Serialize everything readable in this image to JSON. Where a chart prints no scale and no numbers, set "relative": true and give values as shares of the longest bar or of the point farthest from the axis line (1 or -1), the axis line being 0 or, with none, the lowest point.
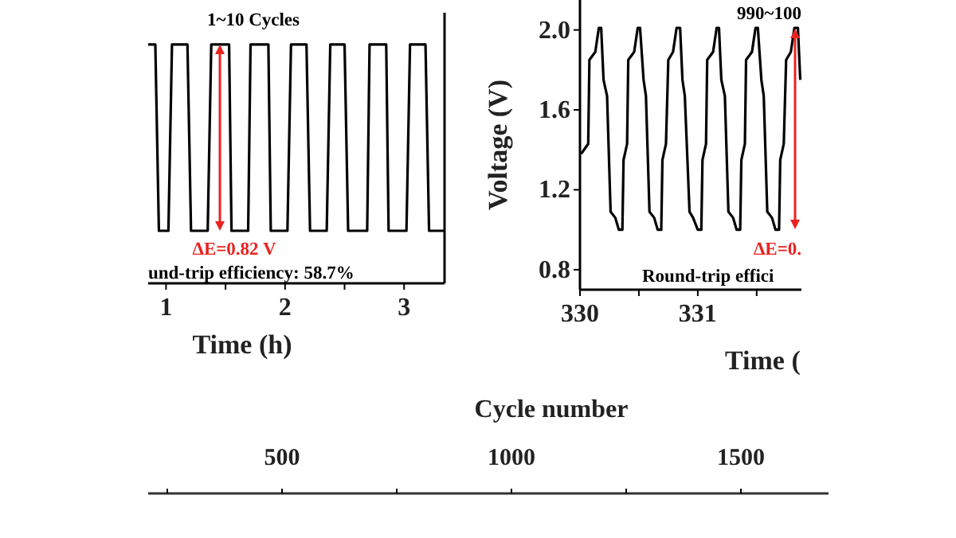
{
  "chart_data": [
    {
      "type": "line",
      "relative": true,
      "xlabel": "Time (h)",
      "xlim": [
        0.85,
        3.34
      ],
      "xticks": [
        1,
        {
          "value": 1.5,
          "label": null
        },
        2,
        {
          "value": 2.5,
          "label": null
        },
        3
      ],
      "annotations": [
        "1~10 Cycles",
        "ΔE=0.82 V",
        "und-trip efficiency: 58.7%"
      ],
      "series": [
        {
          "color": "#000000",
          "x": [
            0.85,
            0.91,
            0.94,
            1.02,
            1.05,
            1.18,
            1.21,
            1.35,
            1.38,
            1.53,
            1.55,
            1.69,
            1.71,
            1.86,
            1.88,
            2.02,
            2.05,
            2.18,
            2.21,
            2.35,
            2.38,
            2.5,
            2.53,
            2.69,
            2.71,
            2.85,
            2.87,
            3.02,
            3.05,
            3.18,
            3.21,
            3.34
          ],
          "values": [
            1,
            1,
            0.22,
            0.22,
            1,
            1,
            0.22,
            0.22,
            1,
            1,
            0.22,
            0.22,
            1,
            1,
            0.22,
            0.22,
            1,
            1,
            0.22,
            0.22,
            1,
            1,
            0.22,
            0.22,
            1,
            1,
            0.22,
            0.22,
            1,
            1,
            0.22,
            0.22
          ]
        }
      ]
    },
    {
      "type": "line",
      "xlabel": "Time (",
      "ylabel": "Voltage (V)",
      "xlim": [
        330,
        331.88
      ],
      "xticks": [
        330,
        {
          "value": 330.5,
          "label": null
        },
        331,
        {
          "value": 331.5,
          "label": null
        }
      ],
      "ylim": [
        0.7,
        2.15
      ],
      "yticks": [
        {
          "value": 0.8,
          "label": "0.8"
        },
        {
          "value": 1.2,
          "label": "1.2"
        },
        {
          "value": 1.6,
          "label": "1.6"
        },
        {
          "value": 2,
          "label": "2.0"
        }
      ],
      "annotations": [
        "990~100",
        "ΔE=0.",
        "Round-trip effici"
      ],
      "series": [
        {
          "color": "#000000",
          "x": [
            330.01,
            330.07,
            330.08,
            330.13,
            330.16,
            330.18,
            330.2,
            330.23,
            330.26,
            330.3,
            330.33,
            330.36,
            330.37,
            330.4,
            330.41,
            330.46,
            330.49,
            330.51,
            330.54,
            330.56,
            330.59,
            330.63,
            330.66,
            330.69,
            330.7,
            330.73,
            330.75,
            330.79,
            330.82,
            330.85,
            330.87,
            330.89,
            330.93,
            330.96,
            331,
            331.03,
            331.04,
            331.07,
            331.08,
            331.13,
            331.16,
            331.18,
            331.2,
            331.23,
            331.26,
            331.3,
            331.33,
            331.36,
            331.37,
            331.4,
            331.41,
            331.46,
            331.49,
            331.51,
            331.54,
            331.56,
            331.59,
            331.63,
            331.66,
            331.69,
            331.7,
            331.73,
            331.75,
            331.79,
            331.82,
            331.85,
            331.87
          ],
          "values": [
            1.38,
            1.43,
            1.85,
            1.89,
            2.01,
            2.01,
            1.75,
            1.67,
            1.09,
            1.06,
            1,
            1,
            1.35,
            1.43,
            1.85,
            1.89,
            2.01,
            2.01,
            1.75,
            1.67,
            1.09,
            1.06,
            1,
            1,
            1.35,
            1.43,
            1.85,
            1.89,
            2.01,
            2.01,
            1.75,
            1.67,
            1.09,
            1.06,
            1,
            1,
            1.35,
            1.43,
            1.85,
            1.89,
            2.01,
            2.01,
            1.75,
            1.67,
            1.09,
            1.06,
            1,
            1,
            1.35,
            1.43,
            1.85,
            1.89,
            2.01,
            2.01,
            1.75,
            1.67,
            1.09,
            1.06,
            1,
            1,
            1.35,
            1.43,
            1.85,
            1.89,
            2.01,
            2.01,
            1.75
          ]
        }
      ]
    },
    {
      "type": "other",
      "xlabel": "Cycle number",
      "annotations": [
        "500",
        "1000",
        "1500"
      ]
    }
  ]
}
